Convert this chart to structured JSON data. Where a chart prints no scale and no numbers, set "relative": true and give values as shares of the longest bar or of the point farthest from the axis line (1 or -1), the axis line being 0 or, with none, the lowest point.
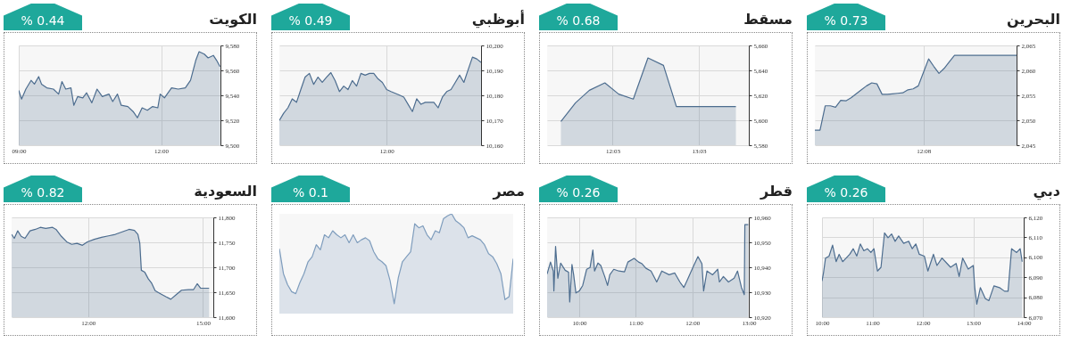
{
  "chart_data": [
    {
      "type": "area",
      "title": "البحرين",
      "subtitle": "% 0.73",
      "grid": true,
      "ylim": [
        2045,
        2065
      ],
      "yticks": [
        {
          "value": 2045,
          "label": "2,045"
        },
        {
          "value": 2050,
          "label": "2,050"
        },
        {
          "value": 2055,
          "label": "2,055"
        },
        {
          "value": 2060,
          "label": "2,060"
        },
        {
          "value": 2065,
          "label": "2,065"
        }
      ],
      "categories": [
        null,
        null,
        null,
        null,
        null,
        null,
        null,
        null,
        null,
        null,
        null,
        null,
        null,
        null,
        null,
        null,
        null,
        null,
        null,
        null,
        null,
        "12:08",
        null,
        null,
        null,
        null,
        null,
        null,
        null,
        null,
        null,
        null,
        null,
        null,
        null,
        null,
        null,
        null,
        null,
        null
      ],
      "series": [
        {
          "color": "#4d6d8f",
          "values": [
            2048,
            2048,
            2052.9,
            2052.9,
            2052.6,
            2054,
            2053.9,
            2054.5,
            2055.3,
            2056.1,
            2056.9,
            2057.5,
            2057.3,
            2055.2,
            2055.2,
            2055.3,
            2055.4,
            2055.5,
            2056.1,
            2056.3,
            2056.9,
            2059.6,
            2062.3,
            2060.8,
            2059.4,
            2060.4,
            2061.7,
            2063,
            2063,
            2063,
            2063,
            2063,
            2063,
            2063,
            2063,
            2063,
            2063,
            2063,
            2063,
            2063
          ]
        }
      ]
    },
    {
      "type": "area",
      "title": "مسقط",
      "subtitle": "% 0.68",
      "grid": true,
      "xlim": [
        11.29,
        13.63
      ],
      "xticks": [
        {
          "value": 12.05,
          "label": "12:03"
        },
        {
          "value": 13.05,
          "label": "13:03"
        }
      ],
      "ylim": [
        5580,
        5660
      ],
      "yticks": [
        {
          "value": 5580,
          "label": "5,580"
        },
        {
          "value": 5600,
          "label": "5,600"
        },
        {
          "value": 5620,
          "label": "5,620"
        },
        {
          "value": 5640,
          "label": "5,640"
        },
        {
          "value": 5660,
          "label": "5,660"
        }
      ],
      "x": [
        11.45,
        11.62,
        11.78,
        11.96,
        12.12,
        12.29,
        12.46,
        12.64,
        12.79,
        13.48
      ],
      "series": [
        {
          "color": "#4d6d8f",
          "values": [
            5599,
            5614,
            5624,
            5630,
            5621,
            5617,
            5650,
            5644,
            5611,
            5611
          ]
        }
      ]
    },
    {
      "type": "area",
      "title": "أبوظبي",
      "subtitle": "% 0.49",
      "grid": true,
      "ylim": [
        10160,
        10200
      ],
      "yticks": [
        {
          "value": 10160,
          "label": "10,160"
        },
        {
          "value": 10170,
          "label": "10,170"
        },
        {
          "value": 10180,
          "label": "10,180"
        },
        {
          "value": 10190,
          "label": "10,190"
        },
        {
          "value": 10200,
          "label": "10,200"
        }
      ],
      "categories": [
        null,
        null,
        null,
        null,
        null,
        null,
        null,
        null,
        null,
        null,
        null,
        null,
        null,
        null,
        null,
        null,
        null,
        null,
        null,
        null,
        null,
        null,
        null,
        null,
        null,
        "12:00",
        null,
        null,
        null,
        null,
        null,
        null,
        null,
        null,
        null,
        null,
        null,
        null,
        null,
        null,
        null,
        null,
        null,
        null,
        null,
        null,
        null,
        null
      ],
      "series": [
        {
          "color": "#4d6d8f",
          "values": [
            10169.9,
            10172.8,
            10175,
            10178.6,
            10177.2,
            10182.3,
            10187.3,
            10188.8,
            10184.4,
            10187.3,
            10185.2,
            10187.3,
            10189.1,
            10185.9,
            10181.5,
            10183.7,
            10182.3,
            10185.9,
            10183.7,
            10188.8,
            10188.1,
            10188.8,
            10188.8,
            10186.6,
            10185.2,
            10182.3,
            10181.5,
            10180.8,
            10180.1,
            10179.3,
            10176.4,
            10173.5,
            10178.6,
            10176.4,
            10177.2,
            10177.2,
            10177.2,
            10175,
            10179.3,
            10181.5,
            10182.3,
            10185.2,
            10188.1,
            10185.2,
            10190.3,
            10195.3,
            10194.6,
            10193.2
          ]
        }
      ]
    },
    {
      "type": "area",
      "title": "الكويت",
      "subtitle": "% 0.44",
      "grid": true,
      "xlim": [
        9,
        13.25
      ],
      "xticks": [
        {
          "value": 9,
          "label": "09:00"
        },
        {
          "value": 12,
          "label": "12:00"
        }
      ],
      "ylim": [
        9500,
        9580
      ],
      "yticks": [
        {
          "value": 9500,
          "label": "9,500"
        },
        {
          "value": 9520,
          "label": "9,520"
        },
        {
          "value": 9540,
          "label": "9,540"
        },
        {
          "value": 9560,
          "label": "9,560"
        },
        {
          "value": 9580,
          "label": "9,580"
        }
      ],
      "x": [
        9,
        9.06,
        9.15,
        9.26,
        9.33,
        9.42,
        9.48,
        9.59,
        9.73,
        9.84,
        9.91,
        9.99,
        10.1,
        10.16,
        10.24,
        10.35,
        10.43,
        10.54,
        10.65,
        10.76,
        10.9,
        10.98,
        11.08,
        11.16,
        11.3,
        11.41,
        11.5,
        11.6,
        11.71,
        11.82,
        11.93,
        11.98,
        12.07,
        12.22,
        12.36,
        12.51,
        12.62,
        12.73,
        12.8,
        12.91,
        12.99,
        13.1,
        13.17,
        13.24
      ],
      "series": [
        {
          "color": "#4d6d8f",
          "values": [
            9544,
            9537,
            9545,
            9552,
            9549,
            9555,
            9549,
            9546,
            9545,
            9541,
            9551,
            9545,
            9546,
            9532,
            9539,
            9538,
            9542,
            9534,
            9545,
            9539,
            9541,
            9535,
            9541,
            9532,
            9531,
            9527,
            9522,
            9530,
            9528,
            9531,
            9530,
            9541,
            9538,
            9546,
            9545,
            9546,
            9552,
            9568,
            9575,
            9573,
            9570,
            9572,
            9568,
            9563
          ]
        }
      ]
    },
    {
      "type": "area",
      "title": "دبي",
      "subtitle": "% 0.26",
      "grid": true,
      "xlim": [
        10,
        14
      ],
      "xticks": [
        {
          "value": 10,
          "label": "10:00"
        },
        {
          "value": 11,
          "label": "11:00"
        },
        {
          "value": 12,
          "label": "12:00"
        },
        {
          "value": 13,
          "label": "13:00"
        },
        {
          "value": 14,
          "label": "14:00"
        }
      ],
      "ylim": [
        6070,
        6120
      ],
      "yticks": [
        {
          "value": 6070,
          "label": "6,070"
        },
        {
          "value": 6080,
          "label": "6,080"
        },
        {
          "value": 6090,
          "label": "6,090"
        },
        {
          "value": 6100,
          "label": "6,100"
        },
        {
          "value": 6110,
          "label": "6,110"
        },
        {
          "value": 6120,
          "label": "6,120"
        }
      ],
      "x": [
        10,
        10.03,
        10.07,
        10.14,
        10.21,
        10.28,
        10.34,
        10.41,
        10.48,
        10.55,
        10.62,
        10.69,
        10.76,
        10.83,
        10.9,
        10.97,
        11.03,
        11.1,
        11.17,
        11.24,
        11.31,
        11.38,
        11.45,
        11.52,
        11.62,
        11.72,
        11.79,
        11.86,
        11.93,
        12.03,
        12.1,
        12.21,
        12.28,
        12.38,
        12.48,
        12.55,
        12.66,
        12.72,
        12.79,
        12.9,
        13,
        13.03,
        13.07,
        13.14,
        13.24,
        13.31,
        13.41,
        13.52,
        13.62,
        13.69,
        13.76,
        13.86,
        13.93,
        13.97
      ],
      "series": [
        {
          "color": "#4d6d8f",
          "values": [
            6088.1,
            6092.2,
            6099.6,
            6100.6,
            6106.1,
            6097.8,
            6101.5,
            6097.8,
            6099.6,
            6101.5,
            6104.3,
            6100.6,
            6106.7,
            6103.3,
            6104.3,
            6102.4,
            6104.3,
            6093.1,
            6095,
            6112.2,
            6109.8,
            6111.7,
            6108,
            6110.7,
            6107,
            6108,
            6104.3,
            6106.7,
            6101.5,
            6100.6,
            6093.1,
            6101.5,
            6095.9,
            6099.6,
            6096.9,
            6095,
            6096.9,
            6090.4,
            6099.6,
            6094.1,
            6095.9,
            6084.8,
            6076.5,
            6084.8,
            6079.3,
            6078.3,
            6085.7,
            6084.8,
            6083,
            6083,
            6104.3,
            6102.4,
            6104.3,
            6097.8
          ]
        }
      ]
    },
    {
      "type": "area",
      "title": "قطر",
      "subtitle": "% 0.26",
      "grid": true,
      "xlim": [
        9.43,
        13
      ],
      "xticks": [
        {
          "value": 10,
          "label": "10:00"
        },
        {
          "value": 11,
          "label": "11:00"
        },
        {
          "value": 12,
          "label": "12:00"
        },
        {
          "value": 13,
          "label": "13:00"
        }
      ],
      "ylim": [
        10920,
        10960
      ],
      "yticks": [
        {
          "value": 10920,
          "label": "10,920"
        },
        {
          "value": 10930,
          "label": "10,930"
        },
        {
          "value": 10940,
          "label": "10,940"
        },
        {
          "value": 10950,
          "label": "10,950"
        },
        {
          "value": 10960,
          "label": "10,960"
        }
      ],
      "x": [
        9.43,
        9.49,
        9.54,
        9.55,
        9.58,
        9.62,
        9.67,
        9.75,
        9.81,
        9.83,
        9.87,
        9.9,
        9.94,
        10,
        10.06,
        10.13,
        10.19,
        10.24,
        10.27,
        10.33,
        10.38,
        10.45,
        10.5,
        10.54,
        10.61,
        10.7,
        10.8,
        10.86,
        10.97,
        11.05,
        11.11,
        11.18,
        11.27,
        11.37,
        11.46,
        11.59,
        11.69,
        11.78,
        11.85,
        11.91,
        12.01,
        12.1,
        12.17,
        12.2,
        12.26,
        12.36,
        12.45,
        12.48,
        12.55,
        12.64,
        12.74,
        12.8,
        12.87,
        12.92,
        12.93,
        12.99
      ],
      "series": [
        {
          "color": "#4d6d8f",
          "values": [
            10937.3,
            10942.1,
            10938.5,
            10930.5,
            10948.4,
            10935.6,
            10941.7,
            10938.8,
            10938,
            10926.1,
            10941.1,
            10937,
            10929.7,
            10930.5,
            10932.7,
            10939.2,
            10939.9,
            10946.9,
            10938.5,
            10941.7,
            10940.7,
            10936.3,
            10932.7,
            10937,
            10939.2,
            10938.5,
            10938.2,
            10942.1,
            10943.6,
            10942.1,
            10941.4,
            10939.6,
            10938.5,
            10934.1,
            10938.5,
            10937,
            10937.7,
            10934.1,
            10931.9,
            10934.8,
            10939.9,
            10944.3,
            10941.4,
            10930.5,
            10938.5,
            10937,
            10939.2,
            10934.1,
            10936.3,
            10934.1,
            10935.6,
            10938.5,
            10931.9,
            10929,
            10957.1,
            10957.1
          ]
        }
      ]
    },
    {
      "type": "area",
      "title": "مصر",
      "subtitle": "% 0.1",
      "relative": true,
      "categories": [
        null,
        null,
        null,
        null,
        null,
        null,
        null,
        null,
        null,
        null,
        null,
        null,
        null,
        null,
        null,
        null,
        null,
        null,
        null,
        null,
        null,
        null,
        null,
        null,
        null,
        null,
        null,
        null,
        null,
        null,
        null,
        null,
        null,
        null,
        null,
        null,
        null,
        null,
        null,
        null,
        null,
        null,
        null,
        null,
        null,
        null,
        null,
        null,
        null,
        null,
        null,
        null,
        null,
        null,
        null,
        null,
        null,
        null
      ],
      "series": [
        {
          "color": "#7f9dbd",
          "values": [
            0.65,
            0.4,
            0.29,
            0.22,
            0.2,
            0.31,
            0.4,
            0.52,
            0.57,
            0.69,
            0.64,
            0.79,
            0.76,
            0.83,
            0.79,
            0.76,
            0.79,
            0.71,
            0.79,
            0.71,
            0.74,
            0.76,
            0.73,
            0.62,
            0.55,
            0.52,
            0.48,
            0.33,
            0.1,
            0.36,
            0.52,
            0.57,
            0.62,
            0.9,
            0.86,
            0.88,
            0.79,
            0.74,
            0.83,
            0.81,
            0.95,
            0.98,
            1,
            0.93,
            0.9,
            0.86,
            0.76,
            0.78,
            0.76,
            0.74,
            0.69,
            0.6,
            0.57,
            0.5,
            0.4,
            0.14,
            0.17,
            0.55
          ]
        }
      ]
    },
    {
      "type": "area",
      "title": "السعودية",
      "subtitle": "% 0.82",
      "grid": true,
      "xlim": [
        10,
        15.27
      ],
      "xticks": [
        {
          "value": 12,
          "label": "12:00"
        },
        {
          "value": 15,
          "label": "15:00"
        }
      ],
      "ylim": [
        11600,
        11800
      ],
      "yticks": [
        {
          "value": 11600,
          "label": "11,600"
        },
        {
          "value": 11650,
          "label": "11,650"
        },
        {
          "value": 11700,
          "label": "11,700"
        },
        {
          "value": 11750,
          "label": "11,750"
        },
        {
          "value": 11800,
          "label": "11,800"
        }
      ],
      "x": [
        10,
        10.07,
        10.16,
        10.25,
        10.35,
        10.48,
        10.62,
        10.75,
        10.89,
        11.07,
        11.16,
        11.3,
        11.44,
        11.57,
        11.71,
        11.85,
        11.98,
        12.16,
        12.35,
        12.53,
        12.71,
        12.89,
        13.07,
        13.21,
        13.3,
        13.35,
        13.39,
        13.48,
        13.57,
        13.66,
        13.75,
        13.89,
        14.03,
        14.16,
        14.3,
        14.44,
        14.62,
        14.75,
        14.85,
        14.94,
        15.16
      ],
      "series": [
        {
          "color": "#4d6d8f",
          "values": [
            11766,
            11758,
            11773,
            11762,
            11758,
            11773,
            11776,
            11780,
            11778,
            11780,
            11776,
            11762,
            11751,
            11746,
            11748,
            11744,
            11751,
            11756,
            11760,
            11763,
            11766,
            11771,
            11776,
            11774,
            11766,
            11748,
            11694,
            11690,
            11677,
            11668,
            11653,
            11647,
            11641,
            11636,
            11645,
            11654,
            11655,
            11655,
            11667,
            11658,
            11658
          ]
        }
      ]
    }
  ]
}
